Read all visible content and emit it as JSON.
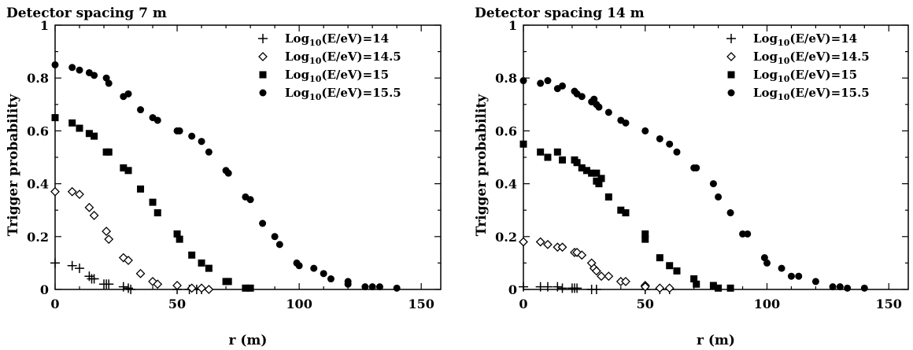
{
  "chart_data": [
    {
      "type": "scatter",
      "title": "Detector spacing 7 m",
      "xlabel": "r (m)",
      "ylabel": "Trigger probability",
      "xlim": [
        0,
        158
      ],
      "ylim": [
        0,
        1
      ],
      "x_ticks": [
        "0",
        "50",
        "100",
        "150"
      ],
      "y_ticks": [
        "0",
        "0.2",
        "0.4",
        "0.6",
        "0.8",
        "1"
      ],
      "legend_position": "top-right",
      "series": [
        {
          "name": "Log₁₀(E/eV)=14",
          "marker": "plus",
          "points": [
            [
              0,
              0.1
            ],
            [
              7,
              0.09
            ],
            [
              10,
              0.08
            ],
            [
              14,
              0.05
            ],
            [
              15,
              0.04
            ],
            [
              16,
              0.04
            ],
            [
              20,
              0.02
            ],
            [
              21,
              0.02
            ],
            [
              22,
              0.02
            ],
            [
              28,
              0.01
            ],
            [
              30,
              0.005
            ],
            [
              31,
              0.0
            ],
            [
              50,
              0.0
            ],
            [
              55,
              0.0
            ],
            [
              58,
              0.0
            ],
            [
              60,
              0.0
            ]
          ]
        },
        {
          "name": "Log₁₀(E/eV)=14.5",
          "marker": "diamond",
          "points": [
            [
              0,
              0.37
            ],
            [
              7,
              0.37
            ],
            [
              10,
              0.36
            ],
            [
              14,
              0.31
            ],
            [
              16,
              0.28
            ],
            [
              21,
              0.22
            ],
            [
              22,
              0.19
            ],
            [
              28,
              0.12
            ],
            [
              30,
              0.11
            ],
            [
              35,
              0.06
            ],
            [
              40,
              0.03
            ],
            [
              42,
              0.02
            ],
            [
              50,
              0.015
            ],
            [
              56,
              0.005
            ],
            [
              60,
              0.005
            ],
            [
              63,
              0.0
            ]
          ]
        },
        {
          "name": "Log₁₀(E/eV)=15",
          "marker": "square",
          "points": [
            [
              0,
              0.65
            ],
            [
              7,
              0.63
            ],
            [
              10,
              0.61
            ],
            [
              14,
              0.59
            ],
            [
              16,
              0.58
            ],
            [
              21,
              0.52
            ],
            [
              22,
              0.52
            ],
            [
              28,
              0.46
            ],
            [
              30,
              0.45
            ],
            [
              35,
              0.38
            ],
            [
              40,
              0.33
            ],
            [
              42,
              0.29
            ],
            [
              50,
              0.21
            ],
            [
              51,
              0.19
            ],
            [
              56,
              0.13
            ],
            [
              60,
              0.1
            ],
            [
              63,
              0.08
            ],
            [
              70,
              0.03
            ],
            [
              71,
              0.03
            ],
            [
              78,
              0.005
            ],
            [
              80,
              0.005
            ]
          ]
        },
        {
          "name": "Log₁₀(E/eV)=15.5",
          "marker": "circle",
          "points": [
            [
              0,
              0.85
            ],
            [
              7,
              0.84
            ],
            [
              10,
              0.83
            ],
            [
              14,
              0.82
            ],
            [
              16,
              0.81
            ],
            [
              21,
              0.8
            ],
            [
              22,
              0.78
            ],
            [
              28,
              0.73
            ],
            [
              30,
              0.74
            ],
            [
              35,
              0.68
            ],
            [
              40,
              0.65
            ],
            [
              42,
              0.64
            ],
            [
              50,
              0.6
            ],
            [
              51,
              0.6
            ],
            [
              56,
              0.58
            ],
            [
              60,
              0.56
            ],
            [
              63,
              0.52
            ],
            [
              70,
              0.45
            ],
            [
              71,
              0.44
            ],
            [
              78,
              0.35
            ],
            [
              80,
              0.34
            ],
            [
              85,
              0.25
            ],
            [
              90,
              0.2
            ],
            [
              92,
              0.17
            ],
            [
              99,
              0.1
            ],
            [
              100,
              0.09
            ],
            [
              106,
              0.08
            ],
            [
              110,
              0.06
            ],
            [
              113,
              0.04
            ],
            [
              120,
              0.03
            ],
            [
              120,
              0.02
            ],
            [
              127,
              0.01
            ],
            [
              130,
              0.01
            ],
            [
              133,
              0.01
            ],
            [
              140,
              0.005
            ]
          ]
        }
      ]
    },
    {
      "type": "scatter",
      "title": "Detector spacing 14 m",
      "xlabel": "r (m)",
      "ylabel": "Trigger probability",
      "xlim": [
        0,
        158
      ],
      "ylim": [
        0,
        1
      ],
      "x_ticks": [
        "0",
        "50",
        "100",
        "150"
      ],
      "y_ticks": [
        "0",
        "0.2",
        "0.4",
        "0.6",
        "0.8",
        "1"
      ],
      "legend_position": "top-right",
      "series": [
        {
          "name": "Log₁₀(E/eV)=14",
          "marker": "plus",
          "points": [
            [
              0,
              0.01
            ],
            [
              7,
              0.01
            ],
            [
              10,
              0.01
            ],
            [
              14,
              0.01
            ],
            [
              16,
              0.005
            ],
            [
              20,
              0.005
            ],
            [
              21,
              0.005
            ],
            [
              22,
              0.005
            ],
            [
              28,
              0.0
            ],
            [
              30,
              0.0
            ],
            [
              50,
              0.0
            ],
            [
              56,
              0.0
            ],
            [
              60,
              0.0
            ]
          ]
        },
        {
          "name": "Log₁₀(E/eV)=14.5",
          "marker": "diamond",
          "points": [
            [
              0,
              0.18
            ],
            [
              7,
              0.18
            ],
            [
              10,
              0.17
            ],
            [
              14,
              0.16
            ],
            [
              16,
              0.16
            ],
            [
              21,
              0.14
            ],
            [
              22,
              0.14
            ],
            [
              24,
              0.13
            ],
            [
              28,
              0.1
            ],
            [
              29,
              0.08
            ],
            [
              30,
              0.07
            ],
            [
              32,
              0.05
            ],
            [
              35,
              0.05
            ],
            [
              40,
              0.03
            ],
            [
              42,
              0.03
            ],
            [
              50,
              0.015
            ],
            [
              50,
              0.01
            ],
            [
              56,
              0.005
            ],
            [
              60,
              0.005
            ]
          ]
        },
        {
          "name": "Log₁₀(E/eV)=15",
          "marker": "square",
          "points": [
            [
              0,
              0.55
            ],
            [
              7,
              0.52
            ],
            [
              10,
              0.5
            ],
            [
              14,
              0.52
            ],
            [
              16,
              0.49
            ],
            [
              21,
              0.49
            ],
            [
              22,
              0.48
            ],
            [
              24,
              0.46
            ],
            [
              26,
              0.45
            ],
            [
              28,
              0.44
            ],
            [
              30,
              0.44
            ],
            [
              30,
              0.41
            ],
            [
              31,
              0.4
            ],
            [
              32,
              0.42
            ],
            [
              35,
              0.35
            ],
            [
              40,
              0.3
            ],
            [
              42,
              0.29
            ],
            [
              50,
              0.21
            ],
            [
              50,
              0.19
            ],
            [
              56,
              0.12
            ],
            [
              60,
              0.09
            ],
            [
              63,
              0.07
            ],
            [
              70,
              0.04
            ],
            [
              71,
              0.02
            ],
            [
              78,
              0.015
            ],
            [
              80,
              0.005
            ],
            [
              85,
              0.005
            ]
          ]
        },
        {
          "name": "Log₁₀(E/eV)=15.5",
          "marker": "circle",
          "points": [
            [
              0,
              0.79
            ],
            [
              7,
              0.78
            ],
            [
              10,
              0.79
            ],
            [
              14,
              0.76
            ],
            [
              16,
              0.77
            ],
            [
              21,
              0.75
            ],
            [
              22,
              0.74
            ],
            [
              24,
              0.73
            ],
            [
              28,
              0.71
            ],
            [
              29,
              0.72
            ],
            [
              30,
              0.7
            ],
            [
              31,
              0.69
            ],
            [
              35,
              0.67
            ],
            [
              40,
              0.64
            ],
            [
              42,
              0.63
            ],
            [
              50,
              0.6
            ],
            [
              56,
              0.57
            ],
            [
              60,
              0.55
            ],
            [
              63,
              0.52
            ],
            [
              70,
              0.46
            ],
            [
              71,
              0.46
            ],
            [
              78,
              0.4
            ],
            [
              80,
              0.35
            ],
            [
              85,
              0.29
            ],
            [
              90,
              0.21
            ],
            [
              92,
              0.21
            ],
            [
              99,
              0.12
            ],
            [
              100,
              0.1
            ],
            [
              106,
              0.08
            ],
            [
              110,
              0.05
            ],
            [
              113,
              0.05
            ],
            [
              120,
              0.03
            ],
            [
              127,
              0.01
            ],
            [
              130,
              0.01
            ],
            [
              133,
              0.005
            ],
            [
              140,
              0.005
            ]
          ]
        }
      ]
    }
  ]
}
